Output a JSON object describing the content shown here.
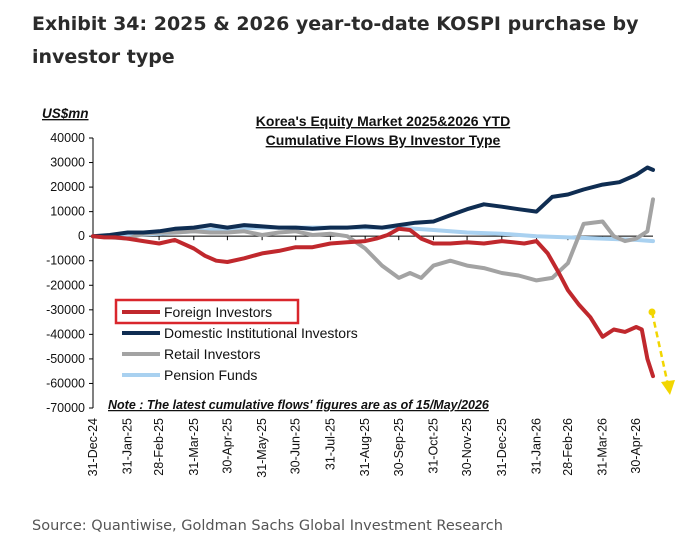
{
  "header": {
    "title": "Exhibit 34: 2025 & 2026 year-to-date KOSPI purchase by investor type"
  },
  "footer": {
    "source": "Source: Quantiwise, Goldman Sachs Global Investment Research"
  },
  "chart_data": {
    "type": "line",
    "title": "Korea's Equity Market 2025&2026  YTD",
    "subtitle": "Cumulative Flows By Investor Type",
    "ylabel": "US$mn",
    "note": "Note : The latest cumulative  flows' figures are as of 15/May/2026",
    "ylim": [
      -70000,
      40000
    ],
    "yticks": [
      40000,
      30000,
      20000,
      10000,
      0,
      -10000,
      -20000,
      -30000,
      -40000,
      -50000,
      -60000,
      -70000
    ],
    "ytick_labels": [
      "40000",
      "30000",
      "20000",
      "10000",
      "0",
      "-10000",
      "-20000",
      "-30000",
      "-40000",
      "-50000",
      "-60000",
      "-70000"
    ],
    "xlim": [
      "2024-12-31",
      "2026-05-15"
    ],
    "xticks": [
      "2024-12-31",
      "2025-01-31",
      "2025-02-28",
      "2025-03-31",
      "2025-04-30",
      "2025-05-31",
      "2025-06-30",
      "2025-07-31",
      "2025-08-31",
      "2025-09-30",
      "2025-10-31",
      "2025-11-30",
      "2025-12-31",
      "2026-01-31",
      "2026-02-28",
      "2026-03-31",
      "2026-04-30"
    ],
    "xtick_labels": [
      "31-Dec-24",
      "31-Jan-25",
      "28-Feb-25",
      "31-Mar-25",
      "30-Apr-25",
      "31-May-25",
      "30-Jun-25",
      "31-Jul-25",
      "31-Aug-25",
      "30-Sep-25",
      "31-Oct-25",
      "30-Nov-25",
      "31-Dec-25",
      "31-Jan-26",
      "28-Feb-26",
      "31-Mar-26",
      "30-Apr-26"
    ],
    "grid": false,
    "legend_position": "lower-left",
    "highlighted_series": "Foreign Investors",
    "highlight_color": "#d9262c",
    "arrow_color": "#f2d600",
    "series": [
      {
        "name": "Foreign Investors",
        "color": "#c0282d",
        "x": [
          "2024-12-31",
          "2025-01-10",
          "2025-01-20",
          "2025-01-31",
          "2025-02-14",
          "2025-02-28",
          "2025-03-14",
          "2025-03-31",
          "2025-04-10",
          "2025-04-20",
          "2025-04-30",
          "2025-05-15",
          "2025-05-31",
          "2025-06-15",
          "2025-06-30",
          "2025-07-15",
          "2025-07-31",
          "2025-08-15",
          "2025-08-31",
          "2025-09-10",
          "2025-09-20",
          "2025-09-30",
          "2025-10-10",
          "2025-10-20",
          "2025-10-31",
          "2025-11-15",
          "2025-11-30",
          "2025-12-15",
          "2025-12-31",
          "2026-01-10",
          "2026-01-20",
          "2026-01-31",
          "2026-02-10",
          "2026-02-20",
          "2026-02-28",
          "2026-03-10",
          "2026-03-20",
          "2026-03-31",
          "2026-04-10",
          "2026-04-20",
          "2026-04-30",
          "2026-05-05",
          "2026-05-10",
          "2026-05-15"
        ],
        "y": [
          0,
          -500,
          -500,
          -1000,
          -2000,
          -3000,
          -1500,
          -5000,
          -8000,
          -10000,
          -10500,
          -9000,
          -7000,
          -6000,
          -4500,
          -4500,
          -3000,
          -2500,
          -2000,
          -1000,
          500,
          3000,
          2500,
          -1000,
          -3000,
          -3000,
          -2500,
          -3000,
          -2000,
          -2500,
          -3000,
          -2000,
          -7000,
          -15000,
          -22000,
          -28000,
          -33000,
          -41000,
          -38000,
          -39000,
          -37000,
          -38000,
          -50000,
          -57000
        ]
      },
      {
        "name": "Domestic Institutional Investors",
        "color": "#0f2d52",
        "x": [
          "2024-12-31",
          "2025-01-15",
          "2025-01-31",
          "2025-02-14",
          "2025-02-28",
          "2025-03-14",
          "2025-03-31",
          "2025-04-15",
          "2025-04-30",
          "2025-05-15",
          "2025-05-31",
          "2025-06-15",
          "2025-06-30",
          "2025-07-15",
          "2025-07-31",
          "2025-08-15",
          "2025-08-31",
          "2025-09-15",
          "2025-09-30",
          "2025-10-15",
          "2025-10-31",
          "2025-11-15",
          "2025-11-30",
          "2025-12-15",
          "2025-12-31",
          "2026-01-15",
          "2026-01-31",
          "2026-02-14",
          "2026-02-28",
          "2026-03-14",
          "2026-03-31",
          "2026-04-15",
          "2026-04-30",
          "2026-05-10",
          "2026-05-15"
        ],
        "y": [
          0,
          500,
          1500,
          1500,
          2000,
          3000,
          3500,
          4500,
          3500,
          4500,
          4000,
          3500,
          3500,
          3000,
          3500,
          3500,
          4000,
          3500,
          4500,
          5500,
          6000,
          8500,
          11000,
          13000,
          12000,
          11000,
          10000,
          16000,
          17000,
          19000,
          21000,
          22000,
          25000,
          28000,
          27000
        ]
      },
      {
        "name": "Retail Investors",
        "color": "#a3a3a3",
        "x": [
          "2024-12-31",
          "2025-01-15",
          "2025-01-31",
          "2025-02-14",
          "2025-02-28",
          "2025-03-14",
          "2025-03-31",
          "2025-04-15",
          "2025-04-30",
          "2025-05-15",
          "2025-05-31",
          "2025-06-15",
          "2025-06-30",
          "2025-07-15",
          "2025-07-31",
          "2025-08-15",
          "2025-08-31",
          "2025-09-15",
          "2025-09-30",
          "2025-10-10",
          "2025-10-20",
          "2025-10-31",
          "2025-11-15",
          "2025-11-30",
          "2025-12-15",
          "2025-12-31",
          "2026-01-15",
          "2026-01-31",
          "2026-02-14",
          "2026-02-28",
          "2026-03-14",
          "2026-03-31",
          "2026-04-10",
          "2026-04-20",
          "2026-04-30",
          "2026-05-10",
          "2026-05-15"
        ],
        "y": [
          0,
          -500,
          -1000,
          1000,
          1500,
          1500,
          2000,
          1500,
          1500,
          2000,
          500,
          1500,
          2000,
          500,
          1000,
          0,
          -5000,
          -12000,
          -17000,
          -15000,
          -17000,
          -12000,
          -10000,
          -12000,
          -13000,
          -15000,
          -16000,
          -18000,
          -17000,
          -11000,
          5000,
          6000,
          0,
          -2000,
          -1000,
          2000,
          15000
        ]
      },
      {
        "name": "Pension Funds",
        "color": "#a9d1f0",
        "x": [
          "2024-12-31",
          "2025-01-31",
          "2025-02-28",
          "2025-03-31",
          "2025-04-30",
          "2025-05-31",
          "2025-06-30",
          "2025-07-31",
          "2025-08-31",
          "2025-09-30",
          "2025-10-31",
          "2025-11-30",
          "2025-12-31",
          "2026-01-31",
          "2026-02-28",
          "2026-03-31",
          "2026-04-30",
          "2026-05-15"
        ],
        "y": [
          0,
          500,
          1000,
          2000,
          3000,
          3500,
          3500,
          3500,
          3500,
          3500,
          2500,
          1500,
          1000,
          0,
          -500,
          -1000,
          -1500,
          -2000
        ]
      }
    ]
  }
}
